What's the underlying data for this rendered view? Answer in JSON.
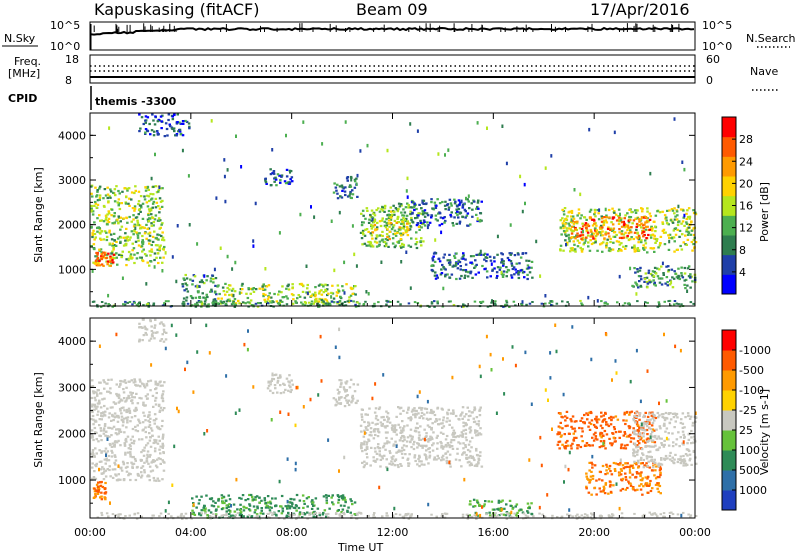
{
  "header": {
    "station": "Kapuskasing (fitACF)",
    "beam": "Beam 09",
    "date": "17/Apr/2016"
  },
  "noise_panel": {
    "left_label": "N.Sky",
    "right_label": "N.Search",
    "left_ticks": [
      "10^5",
      "10^0"
    ],
    "right_ticks": [
      "10^5",
      "10^0"
    ]
  },
  "freq_panel": {
    "left_label_1": "Freq.",
    "left_label_2": "[MHz]",
    "right_label": "Nave",
    "left_ticks": [
      "18",
      "8"
    ],
    "right_ticks": [
      "60",
      "0"
    ]
  },
  "cpid": {
    "label": "CPID",
    "value": "themis -3300"
  },
  "chart_data": [
    {
      "type": "heatmap",
      "name": "power",
      "ylabel": "Slant Range [km]",
      "ylim": [
        180,
        4500
      ],
      "yticks": [
        "1000",
        "2000",
        "3000",
        "4000"
      ],
      "xlim": [
        0,
        24
      ],
      "colorbar": {
        "label": "Power [dB]",
        "ticks": [
          "4",
          "8",
          "12",
          "16",
          "20",
          "24",
          "28"
        ],
        "colors": [
          "#0000ff",
          "#1f3fa8",
          "#2e7d4f",
          "#4caf50",
          "#b5e61d",
          "#ffd200",
          "#ff9a00",
          "#ff5a00",
          "#ff0000"
        ]
      },
      "regions": [
        {
          "t": [
            0.0,
            2.9
          ],
          "r": [
            1100,
            2900
          ],
          "v": 14
        },
        {
          "t": [
            0.1,
            0.9
          ],
          "r": [
            1100,
            1400
          ],
          "v": 24
        },
        {
          "t": [
            1.9,
            3.9
          ],
          "r": [
            4000,
            4500
          ],
          "v": 6
        },
        {
          "t": [
            3.6,
            5.0
          ],
          "r": [
            200,
            900
          ],
          "v": 10
        },
        {
          "t": [
            5.0,
            10.5
          ],
          "r": [
            250,
            700
          ],
          "v": 14
        },
        {
          "t": [
            6.8,
            8.0
          ],
          "r": [
            2900,
            3300
          ],
          "v": 7
        },
        {
          "t": [
            9.6,
            10.6
          ],
          "r": [
            2600,
            3100
          ],
          "v": 8
        },
        {
          "t": [
            10.7,
            13.2
          ],
          "r": [
            1500,
            2500
          ],
          "v": 12
        },
        {
          "t": [
            11.0,
            12.6
          ],
          "r": [
            1700,
            2200
          ],
          "v": 17
        },
        {
          "t": [
            12.6,
            15.5
          ],
          "r": [
            2000,
            2600
          ],
          "v": 7
        },
        {
          "t": [
            13.5,
            17.5
          ],
          "r": [
            800,
            1400
          ],
          "v": 7
        },
        {
          "t": [
            18.6,
            24.0
          ],
          "r": [
            1400,
            2400
          ],
          "v": 15
        },
        {
          "t": [
            19.0,
            22.2
          ],
          "r": [
            1700,
            2200
          ],
          "v": 24
        },
        {
          "t": [
            21.4,
            24.0
          ],
          "r": [
            600,
            1100
          ],
          "v": 10
        }
      ]
    },
    {
      "type": "heatmap",
      "name": "velocity",
      "ylabel": "Slant Range [km]",
      "xlabel": "Time UT",
      "ylim": [
        180,
        4500
      ],
      "yticks": [
        "1000",
        "2000",
        "3000",
        "4000"
      ],
      "xlim": [
        0,
        24
      ],
      "xticks": [
        "00:00",
        "04:00",
        "08:00",
        "12:00",
        "16:00",
        "20:00",
        "00:00"
      ],
      "colorbar": {
        "label": "Velocity [m s-1]",
        "ticks": [
          "1000",
          "500",
          "100",
          "25",
          "-25",
          "-100",
          "-500",
          "-1000"
        ],
        "colors": [
          "#1f3fbf",
          "#2e6fa8",
          "#2e8b57",
          "#66c23a",
          "#c8c8c0",
          "#ffd200",
          "#ff9a00",
          "#ff5a00",
          "#ff0000"
        ]
      },
      "regions": [
        {
          "t": [
            0.0,
            2.9
          ],
          "r": [
            1000,
            3200
          ],
          "v": 0
        },
        {
          "t": [
            0.1,
            0.6
          ],
          "r": [
            600,
            1000
          ],
          "v": -300
        },
        {
          "t": [
            1.9,
            3.0
          ],
          "r": [
            4000,
            4500
          ],
          "v": 0
        },
        {
          "t": [
            4.0,
            10.5
          ],
          "r": [
            200,
            700
          ],
          "v": 80
        },
        {
          "t": [
            7.0,
            8.0
          ],
          "r": [
            2900,
            3300
          ],
          "v": 0
        },
        {
          "t": [
            9.6,
            10.6
          ],
          "r": [
            2600,
            3200
          ],
          "v": 0
        },
        {
          "t": [
            10.7,
            15.5
          ],
          "r": [
            1300,
            2600
          ],
          "v": 0
        },
        {
          "t": [
            15.0,
            17.5
          ],
          "r": [
            250,
            600
          ],
          "v": 60
        },
        {
          "t": [
            18.5,
            22.4
          ],
          "r": [
            1700,
            2500
          ],
          "v": -500
        },
        {
          "t": [
            19.6,
            22.6
          ],
          "r": [
            700,
            1400
          ],
          "v": -300
        },
        {
          "t": [
            21.5,
            24.0
          ],
          "r": [
            1300,
            2500
          ],
          "v": 0
        }
      ]
    }
  ]
}
